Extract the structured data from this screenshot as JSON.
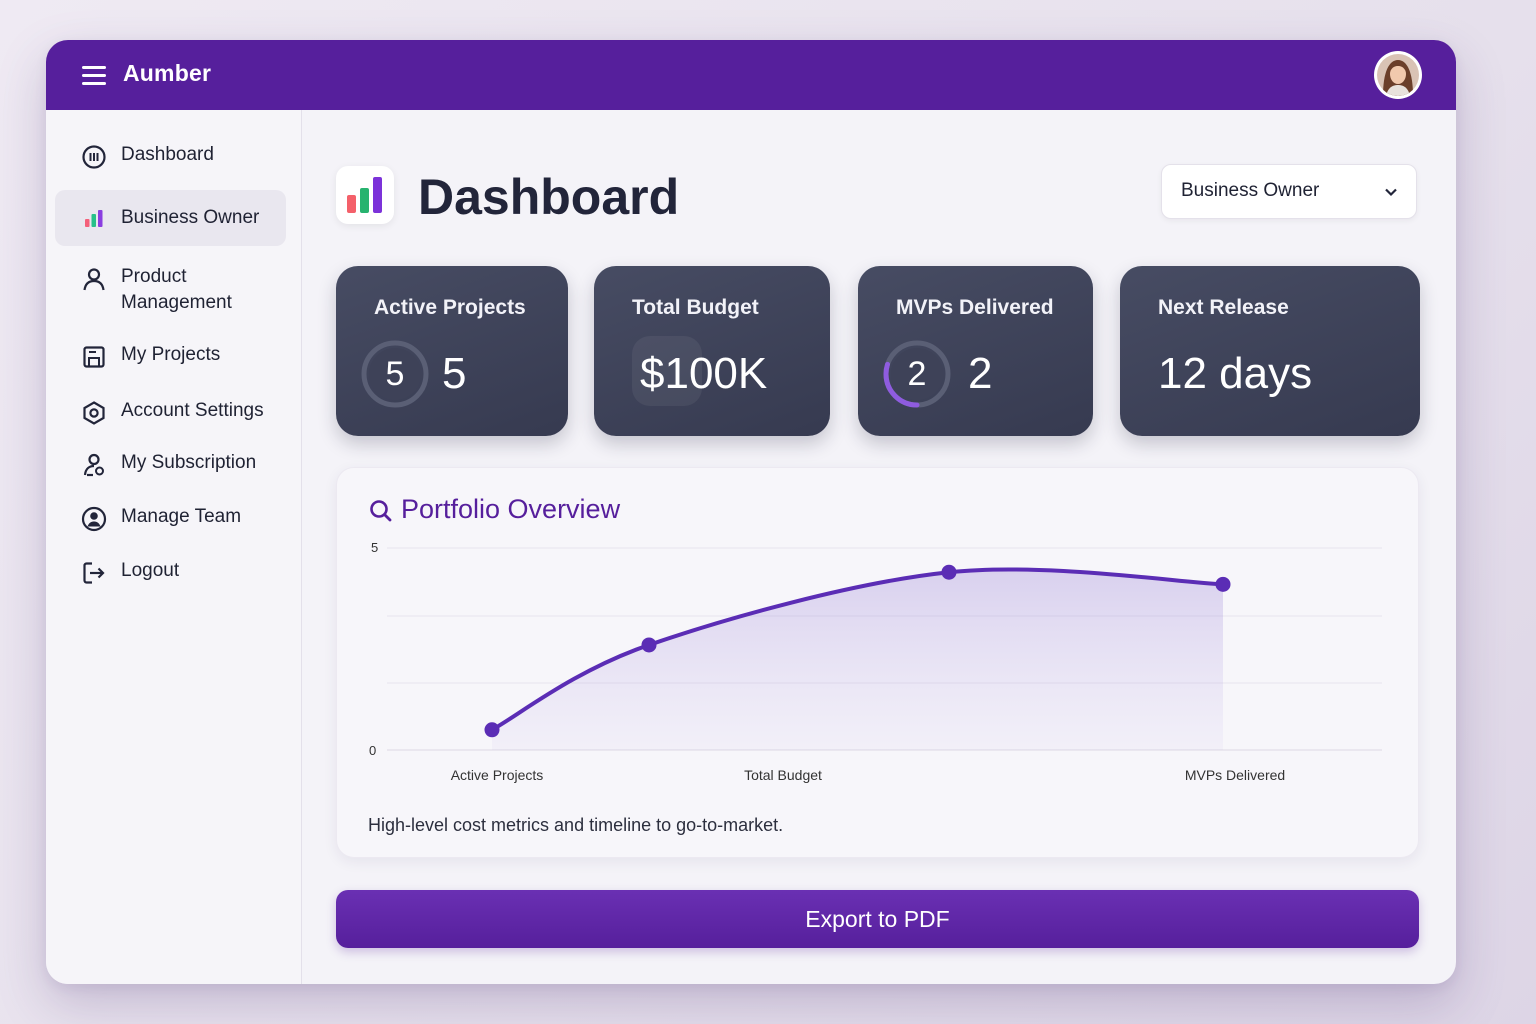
{
  "app": {
    "title": "Aumber"
  },
  "sidebar": {
    "items": [
      {
        "label": "Dashboard",
        "icon": "dashboard-circle-icon"
      },
      {
        "label": "Business Owner",
        "icon": "bar-chart-icon",
        "active": true
      },
      {
        "label": "Product Management",
        "icon": "user-icon"
      },
      {
        "label": "My Projects",
        "icon": "save-icon"
      },
      {
        "label": "Account Settings",
        "icon": "settings-hexagon-icon"
      },
      {
        "label": "My Subscription",
        "icon": "subscription-user-icon"
      },
      {
        "label": "Manage Team",
        "icon": "team-user-icon"
      },
      {
        "label": "Logout",
        "icon": "logout-icon"
      }
    ]
  },
  "header": {
    "title": "Dashboard",
    "role_select": {
      "value": "Business Owner"
    }
  },
  "cards": [
    {
      "title": "Active Projects",
      "ring_value": "5",
      "value": "5",
      "ring_fraction": 0.0
    },
    {
      "title": "Total Budget",
      "value": "$100K"
    },
    {
      "title": "MVPs Delivered",
      "ring_value": "2",
      "value": "2",
      "ring_fraction": 0.3
    },
    {
      "title": "Next Release",
      "value": "12 days"
    }
  ],
  "portfolio": {
    "title": "Portfolio Overview",
    "note": "High-level cost metrics and timeline to go-to-market."
  },
  "chart_data": {
    "type": "area",
    "title": "",
    "xlabel": "",
    "ylabel": "",
    "ylim": [
      0,
      5
    ],
    "yticks": [
      "0",
      "5"
    ],
    "xtick_labels": [
      "Active Projects",
      "Total Budget",
      "MVPs Delivered"
    ],
    "points": [
      {
        "x": 0,
        "y": 0.5
      },
      {
        "x": 1,
        "y": 2.6
      },
      {
        "x": 2,
        "y": 4.4
      },
      {
        "x": 3,
        "y": 4.1
      }
    ],
    "grid": true,
    "legend": "none"
  },
  "actions": {
    "export_label": "Export to PDF"
  },
  "colors": {
    "primary": "#561f9c",
    "card_bg": "#3e4259",
    "accent_line": "#5b2db5"
  }
}
